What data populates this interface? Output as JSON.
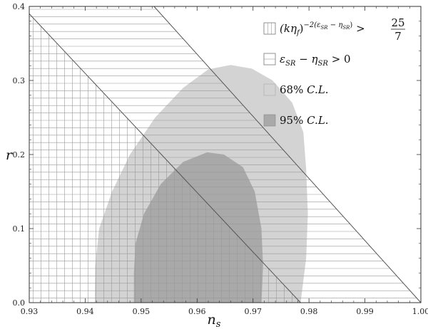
{
  "chart_data": {
    "type": "area",
    "title": "",
    "xlabel": "n_s",
    "ylabel": "r",
    "xlim": [
      0.93,
      1.0
    ],
    "ylim": [
      0.0,
      0.4
    ],
    "xticks": [
      "0.93",
      "0.94",
      "0.95",
      "0.96",
      "0.97",
      "0.98",
      "0.99",
      "1.00"
    ],
    "yticks": [
      "0.0",
      "0.1",
      "0.2",
      "0.3",
      "0.4"
    ],
    "grid": false,
    "legend_position": "top-right",
    "constraint_lines": [
      {
        "name": "(kη_f)^{-2(ε_SR-η_SR)} > 25/7",
        "points": [
          [
            0.93,
            0.39
          ],
          [
            0.9785,
            0.0
          ]
        ]
      },
      {
        "name": "ε_SR - η_SR > 0",
        "points": [
          [
            0.9523,
            0.4
          ],
          [
            1.0,
            0.0
          ]
        ]
      }
    ],
    "series": [
      {
        "name": "68% C.L.",
        "color": "#d3d3d3",
        "points": [
          [
            0.9417,
            0.0
          ],
          [
            0.9418,
            0.05
          ],
          [
            0.9425,
            0.1
          ],
          [
            0.9448,
            0.15
          ],
          [
            0.948,
            0.2
          ],
          [
            0.9525,
            0.25
          ],
          [
            0.9575,
            0.29
          ],
          [
            0.962,
            0.315
          ],
          [
            0.966,
            0.321
          ],
          [
            0.9698,
            0.316
          ],
          [
            0.9735,
            0.3
          ],
          [
            0.977,
            0.27
          ],
          [
            0.979,
            0.23
          ],
          [
            0.9795,
            0.18
          ],
          [
            0.9798,
            0.12
          ],
          [
            0.9795,
            0.06
          ],
          [
            0.9785,
            0.0
          ]
        ]
      },
      {
        "name": "95% C.L.",
        "color": "#a9a9a9",
        "points": [
          [
            0.9487,
            0.0
          ],
          [
            0.9487,
            0.04
          ],
          [
            0.949,
            0.08
          ],
          [
            0.9505,
            0.12
          ],
          [
            0.9535,
            0.16
          ],
          [
            0.9575,
            0.19
          ],
          [
            0.9618,
            0.203
          ],
          [
            0.9648,
            0.2
          ],
          [
            0.9682,
            0.183
          ],
          [
            0.9703,
            0.15
          ],
          [
            0.9715,
            0.1
          ],
          [
            0.9718,
            0.05
          ],
          [
            0.9715,
            0.0
          ]
        ]
      }
    ],
    "legend": [
      {
        "id": "hatch-grid",
        "base": "(kη",
        "sub": "f",
        "exp": "−2(ε",
        "exp_sub1": "SR",
        "exp_mid": " − η",
        "exp_sub2": "SR",
        "exp_end": ")",
        "rel": "> ",
        "num": "25",
        "den": "7"
      },
      {
        "id": "hatch-horizontal",
        "a": "ε",
        "a_sub": "SR",
        "mid": " − η",
        "b_sub": "SR",
        "rel": " > 0"
      },
      {
        "id": "light",
        "text": "68% ",
        "it": "C.L."
      },
      {
        "id": "dark",
        "text": "95% ",
        "it": "C.L."
      }
    ]
  }
}
